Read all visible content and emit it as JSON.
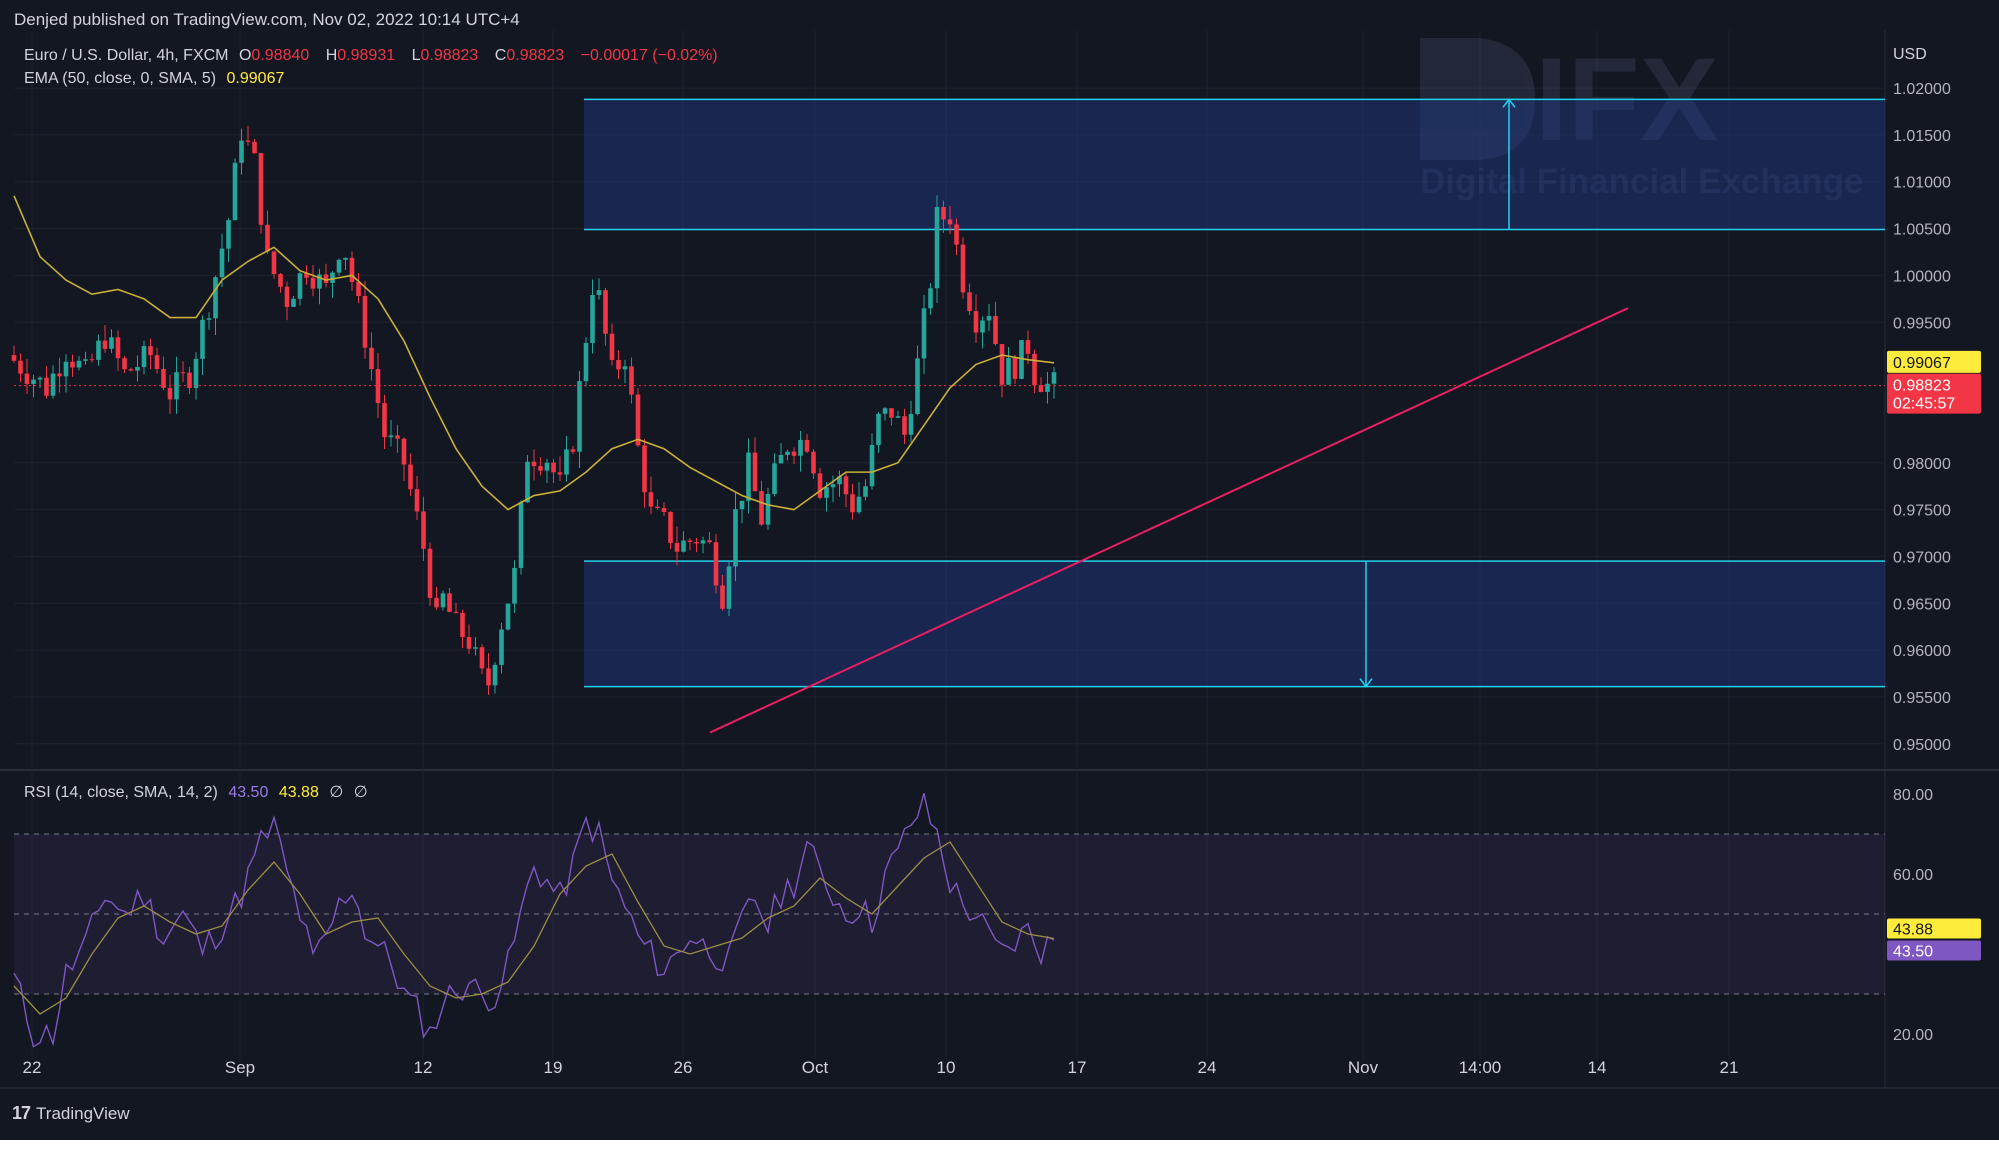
{
  "header": {
    "publisher": "Denjed published on TradingView.com, Nov 02, 2022 10:14 UTC+4"
  },
  "legend": {
    "symbol": "Euro / U.S. Dollar, 4h, FXCM",
    "open_label": "O",
    "open": "0.98840",
    "high_label": "H",
    "high": "0.98931",
    "low_label": "L",
    "low": "0.98823",
    "close_label": "C",
    "close": "0.98823",
    "change": "−0.00017 (−0.02%)",
    "ema_name": "EMA (50, close, 0, SMA, 5)",
    "ema_value": "0.99067",
    "rsi_name": "RSI (14, close, SMA, 14, 2)",
    "rsi_value": "43.50",
    "rsi_sma": "43.88",
    "na1": "∅",
    "na2": "∅"
  },
  "watermark": {
    "brand": "DIFX",
    "tagline": "Digital Financial Exchange"
  },
  "footer": {
    "brand": "TradingView",
    "logo": "17"
  },
  "price_labels": {
    "ema_tag": "0.99067",
    "last_price": "0.98823",
    "countdown": "02:45:57",
    "rsi_sma_tag": "43.88",
    "rsi_tag": "43.50"
  },
  "colors": {
    "background": "#131722",
    "up": "#26a69a",
    "down": "#f23645",
    "ema": "#ffeb3b",
    "rsi": "#7e57c2",
    "zone": "#1e3a8a",
    "zone_border": "#22d3ee",
    "trendline": "#e91e63"
  },
  "chart_data": [
    {
      "type": "candlestick",
      "title": "Euro / U.S. Dollar, 4h, FXCM",
      "currency": "USD",
      "x_labels": [
        "22",
        "Sep",
        "12",
        "19",
        "26",
        "Oct",
        "10",
        "17",
        "24",
        "Nov",
        "14:00",
        "14",
        "21"
      ],
      "y_ticks": [
        1.02,
        1.015,
        1.01,
        1.005,
        1.0,
        0.995,
        0.98,
        0.975,
        0.97,
        0.965,
        0.96,
        0.955,
        0.95
      ],
      "y_tick_labels": [
        "1.02000",
        "1.01500",
        "1.01000",
        "1.00500",
        "1.00000",
        "0.99500",
        "0.98000",
        "0.97500",
        "0.97000",
        "0.96500",
        "0.96000",
        "0.95500",
        "0.95000"
      ],
      "ylim": [
        0.9472,
        1.0262
      ],
      "grid": true,
      "last_price": 0.98823,
      "price_path": [
        [
          0,
          0.9915
        ],
        [
          6,
          0.988
        ],
        [
          9,
          0.992
        ],
        [
          12,
          0.9895
        ],
        [
          15,
          0.9935
        ],
        [
          18,
          0.9895
        ],
        [
          22,
          0.9915
        ],
        [
          25,
          0.9875
        ],
        [
          28,
          0.9895
        ],
        [
          31,
          0.997
        ],
        [
          34,
          1.006
        ],
        [
          36,
          1.0155
        ],
        [
          38,
          1.012
        ],
        [
          40,
          1.0015
        ],
        [
          43,
          0.9975
        ],
        [
          46,
          1.001
        ],
        [
          49,
          0.9985
        ],
        [
          51,
          1.003
        ],
        [
          52,
          1.0025
        ],
        [
          55,
          0.9935
        ],
        [
          58,
          0.983
        ],
        [
          61,
          0.98
        ],
        [
          64,
          0.971
        ],
        [
          66,
          0.963
        ],
        [
          67,
          0.9655
        ],
        [
          69,
          0.9625
        ],
        [
          71,
          0.961
        ],
        [
          73,
          0.957
        ],
        [
          74,
          0.9565
        ],
        [
          76,
          0.963
        ],
        [
          78,
          0.968
        ],
        [
          80,
          0.981
        ],
        [
          83,
          0.9805
        ],
        [
          85,
          0.9775
        ],
        [
          87,
          0.9825
        ],
        [
          89,
          0.9935
        ],
        [
          90,
          0.999
        ],
        [
          91,
          0.9975
        ],
        [
          93,
          0.9895
        ],
        [
          95,
          0.9915
        ],
        [
          97,
          0.9815
        ],
        [
          99,
          0.9745
        ],
        [
          101,
          0.9735
        ],
        [
          103,
          0.971
        ],
        [
          106,
          0.972
        ],
        [
          108,
          0.971
        ],
        [
          110,
          0.966
        ],
        [
          112,
          0.9745
        ],
        [
          114,
          0.9795
        ],
        [
          116,
          0.974
        ],
        [
          118,
          0.9785
        ],
        [
          120,
          0.982
        ],
        [
          123,
          0.9825
        ],
        [
          125,
          0.9775
        ],
        [
          128,
          0.978
        ],
        [
          130,
          0.9755
        ],
        [
          132,
          0.9775
        ],
        [
          134,
          0.9845
        ],
        [
          136,
          0.9855
        ],
        [
          138,
          0.983
        ],
        [
          140,
          0.9905
        ],
        [
          142,
          0.9995
        ],
        [
          143,
          1.006
        ],
        [
          145,
          1.0065
        ],
        [
          147,
          0.9995
        ],
        [
          149,
          0.9955
        ],
        [
          151,
          0.9965
        ],
        [
          153,
          0.9895
        ],
        [
          155,
          0.9905
        ],
        [
          157,
          0.9925
        ],
        [
          158,
          0.9895
        ],
        [
          160,
          0.98823
        ]
      ],
      "ema": [
        [
          0,
          1.0085
        ],
        [
          4,
          1.002
        ],
        [
          8,
          0.9995
        ],
        [
          12,
          0.998
        ],
        [
          16,
          0.9985
        ],
        [
          20,
          0.9975
        ],
        [
          24,
          0.9955
        ],
        [
          28,
          0.9955
        ],
        [
          32,
          0.9995
        ],
        [
          36,
          1.0015
        ],
        [
          40,
          1.003
        ],
        [
          44,
          1.0005
        ],
        [
          48,
          0.9995
        ],
        [
          52,
          1.0
        ],
        [
          56,
          0.9975
        ],
        [
          60,
          0.993
        ],
        [
          64,
          0.987
        ],
        [
          68,
          0.9815
        ],
        [
          72,
          0.9775
        ],
        [
          76,
          0.975
        ],
        [
          80,
          0.9765
        ],
        [
          84,
          0.977
        ],
        [
          88,
          0.979
        ],
        [
          92,
          0.9815
        ],
        [
          96,
          0.9825
        ],
        [
          100,
          0.9815
        ],
        [
          104,
          0.9795
        ],
        [
          108,
          0.978
        ],
        [
          112,
          0.9765
        ],
        [
          116,
          0.9755
        ],
        [
          120,
          0.975
        ],
        [
          124,
          0.977
        ],
        [
          128,
          0.979
        ],
        [
          132,
          0.979
        ],
        [
          136,
          0.98
        ],
        [
          140,
          0.984
        ],
        [
          144,
          0.988
        ],
        [
          148,
          0.9905
        ],
        [
          152,
          0.9915
        ],
        [
          156,
          0.991
        ],
        [
          160,
          0.99067
        ]
      ],
      "zones": [
        {
          "name": "upper",
          "top": 1.0188,
          "bottom": 1.0049,
          "x_start": 66,
          "x_end": 216
        },
        {
          "name": "lower",
          "top": 0.9695,
          "bottom": 0.9561,
          "x_start": 66,
          "x_end": 216
        }
      ],
      "arrows": [
        {
          "x": 172,
          "from": 1.0049,
          "to": 1.0188
        },
        {
          "x": 156,
          "from": 0.9695,
          "to": 0.9561
        }
      ],
      "trendline": {
        "from": [
          80,
          0.9512
        ],
        "to": [
          186,
          0.9965
        ]
      },
      "min_index": 0,
      "max_index": 216
    },
    {
      "type": "line",
      "title": "RSI (14, close, SMA, 14, 2)",
      "y_ticks": [
        80,
        60,
        40,
        20
      ],
      "y_tick_labels": [
        "80.00",
        "60.00",
        "40.00",
        "20.00"
      ],
      "ylim": [
        13.5,
        86
      ],
      "bands": [
        70,
        50,
        30
      ],
      "series": [
        {
          "name": "RSI",
          "values": [
            [
              0,
              34
            ],
            [
              3,
              20
            ],
            [
              6,
              20
            ],
            [
              8,
              35
            ],
            [
              11,
              42
            ],
            [
              14,
              55
            ],
            [
              17,
              50
            ],
            [
              20,
              55
            ],
            [
              23,
              44
            ],
            [
              26,
              50
            ],
            [
              29,
              41
            ],
            [
              32,
              47
            ],
            [
              35,
              55
            ],
            [
              38,
              68
            ],
            [
              40,
              72
            ],
            [
              42,
              60
            ],
            [
              44,
              50
            ],
            [
              46,
              38
            ],
            [
              48,
              44
            ],
            [
              50,
              52
            ],
            [
              52,
              57
            ],
            [
              54,
              46
            ],
            [
              56,
              42
            ],
            [
              58,
              38
            ],
            [
              60,
              30
            ],
            [
              62,
              26
            ],
            [
              64,
              20
            ],
            [
              66,
              28
            ],
            [
              68,
              31
            ],
            [
              70,
              33
            ],
            [
              72,
              29
            ],
            [
              74,
              30
            ],
            [
              76,
              37
            ],
            [
              78,
              50
            ],
            [
              80,
              62
            ],
            [
              82,
              58
            ],
            [
              84,
              54
            ],
            [
              86,
              62
            ],
            [
              88,
              73
            ],
            [
              90,
              70
            ],
            [
              92,
              58
            ],
            [
              94,
              52
            ],
            [
              96,
              44
            ],
            [
              98,
              40
            ],
            [
              100,
              36
            ],
            [
              102,
              40
            ],
            [
              104,
              45
            ],
            [
              106,
              42
            ],
            [
              108,
              40
            ],
            [
              110,
              38
            ],
            [
              112,
              48
            ],
            [
              114,
              54
            ],
            [
              116,
              47
            ],
            [
              118,
              55
            ],
            [
              120,
              58
            ],
            [
              122,
              67
            ],
            [
              124,
              60
            ],
            [
              126,
              55
            ],
            [
              128,
              50
            ],
            [
              130,
              52
            ],
            [
              132,
              48
            ],
            [
              134,
              60
            ],
            [
              136,
              65
            ],
            [
              138,
              73
            ],
            [
              140,
              77
            ],
            [
              142,
              70
            ],
            [
              144,
              58
            ],
            [
              146,
              52
            ],
            [
              148,
              50
            ],
            [
              150,
              44
            ],
            [
              152,
              40
            ],
            [
              154,
              43
            ],
            [
              156,
              46
            ],
            [
              158,
              41
            ],
            [
              160,
              43.5
            ]
          ]
        },
        {
          "name": "SMA",
          "values": [
            [
              0,
              32
            ],
            [
              4,
              25
            ],
            [
              8,
              29
            ],
            [
              12,
              40
            ],
            [
              16,
              49
            ],
            [
              20,
              52
            ],
            [
              24,
              48
            ],
            [
              28,
              45
            ],
            [
              32,
              47
            ],
            [
              36,
              56
            ],
            [
              40,
              63
            ],
            [
              44,
              55
            ],
            [
              48,
              45
            ],
            [
              52,
              48
            ],
            [
              56,
              49
            ],
            [
              60,
              40
            ],
            [
              64,
              32
            ],
            [
              68,
              29
            ],
            [
              72,
              30
            ],
            [
              76,
              33
            ],
            [
              80,
              42
            ],
            [
              84,
              55
            ],
            [
              88,
              62
            ],
            [
              92,
              65
            ],
            [
              96,
              53
            ],
            [
              100,
              42
            ],
            [
              104,
              40
            ],
            [
              108,
              42
            ],
            [
              112,
              44
            ],
            [
              116,
              49
            ],
            [
              120,
              52
            ],
            [
              124,
              59
            ],
            [
              128,
              54
            ],
            [
              132,
              50
            ],
            [
              136,
              57
            ],
            [
              140,
              64
            ],
            [
              144,
              68
            ],
            [
              148,
              58
            ],
            [
              152,
              48
            ],
            [
              156,
              45
            ],
            [
              160,
              43.88
            ]
          ]
        }
      ]
    }
  ]
}
